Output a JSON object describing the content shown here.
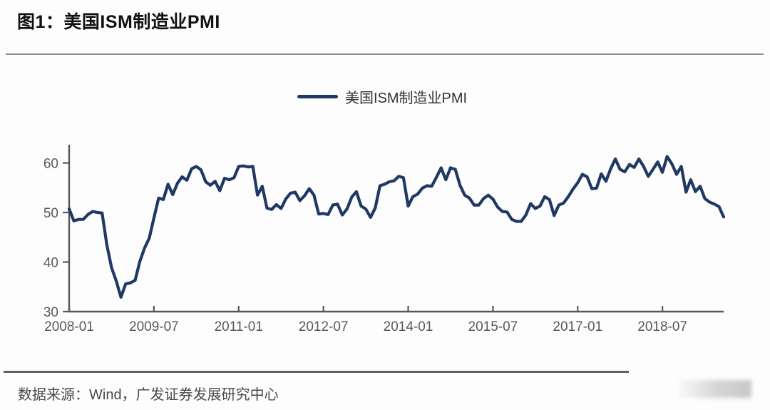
{
  "figure": {
    "title": "图1：美国ISM制造业PMI"
  },
  "legend": {
    "label": "美国ISM制造业PMI",
    "line_color": "#1f3864"
  },
  "source": {
    "text": "数据来源：Wind，广发证券发展研究中心"
  },
  "chart_data": {
    "type": "line",
    "title": "美国ISM制造业PMI",
    "xlabel": "",
    "ylabel": "",
    "grid": false,
    "legend_position": "top-center",
    "line_color": "#1f3864",
    "axis_color": "#595959",
    "tick_label_color": "#595959",
    "ylim": [
      30,
      63.5
    ],
    "y_ticks": [
      60,
      50,
      40,
      30
    ],
    "x_ticks": [
      {
        "label": "2008-01",
        "month_index": 0
      },
      {
        "label": "2009-07",
        "month_index": 18
      },
      {
        "label": "2011-01",
        "month_index": 36
      },
      {
        "label": "2012-07",
        "month_index": 54
      },
      {
        "label": "2014-01",
        "month_index": 72
      },
      {
        "label": "2015-07",
        "month_index": 90
      },
      {
        "label": "2017-01",
        "month_index": 108
      },
      {
        "label": "2018-07",
        "month_index": 126
      }
    ],
    "series": [
      {
        "name": "美国ISM制造业PMI",
        "frequency": "monthly",
        "x_start": "2008-01",
        "x_end": "2019-08",
        "values": [
          50.7,
          48.3,
          48.6,
          48.6,
          49.6,
          50.2,
          50.0,
          49.9,
          43.5,
          38.9,
          36.2,
          32.9,
          35.6,
          35.8,
          36.3,
          40.1,
          42.8,
          44.8,
          48.9,
          52.9,
          52.6,
          55.7,
          53.6,
          55.9,
          57.2,
          56.5,
          58.8,
          59.3,
          58.6,
          56.2,
          55.5,
          56.3,
          54.4,
          56.9,
          56.6,
          57.0,
          59.3,
          59.4,
          59.2,
          59.3,
          53.5,
          55.3,
          50.9,
          50.6,
          51.6,
          50.8,
          52.7,
          53.9,
          54.1,
          52.4,
          53.4,
          54.8,
          53.5,
          49.7,
          49.8,
          49.6,
          51.5,
          51.7,
          49.5,
          50.7,
          53.1,
          54.2,
          51.3,
          50.7,
          49.0,
          50.9,
          55.4,
          55.7,
          56.2,
          56.4,
          57.3,
          57.0,
          51.3,
          53.2,
          53.7,
          54.9,
          55.4,
          55.3,
          57.1,
          59.0,
          56.6,
          59.0,
          58.7,
          55.5,
          53.5,
          52.9,
          51.5,
          51.5,
          52.8,
          53.5,
          52.7,
          51.1,
          50.2,
          50.1,
          48.6,
          48.2,
          48.2,
          49.5,
          51.8,
          50.8,
          51.3,
          53.2,
          52.6,
          49.4,
          51.5,
          51.9,
          53.2,
          54.7,
          56.0,
          57.7,
          57.2,
          54.8,
          54.9,
          57.8,
          56.3,
          58.8,
          60.8,
          58.7,
          58.2,
          59.7,
          59.1,
          60.8,
          59.3,
          57.3,
          58.7,
          60.2,
          58.1,
          61.3,
          59.8,
          57.7,
          59.3,
          54.1,
          56.6,
          54.2,
          55.3,
          52.8,
          52.1,
          51.7,
          51.2,
          49.1
        ]
      }
    ]
  }
}
